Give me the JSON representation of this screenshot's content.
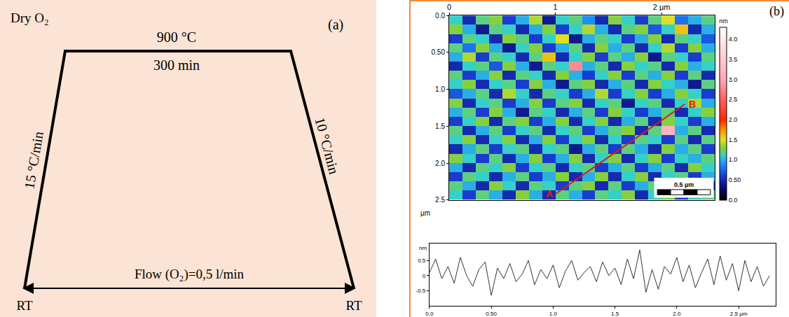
{
  "diagram": {
    "panel_label": "(a)",
    "atmosphere": "Dry O₂",
    "plateau_temperature": "900 °C",
    "plateau_time": "300 min",
    "heating_rate": "15 °C/min",
    "cooling_rate": "10 °C/min",
    "flow": "Flow (O₂)=0,5 l/min",
    "start": "RT",
    "end": "RT"
  },
  "chart_data": [
    {
      "type": "heatmap",
      "panel_label": "(b)",
      "x": [
        0.0625,
        0.1875,
        0.3125,
        0.4375,
        0.5625,
        0.6875,
        0.8125,
        0.9375,
        1.0625,
        1.1875,
        1.3125,
        1.4375,
        1.5625,
        1.6875,
        1.8125,
        1.9375,
        2.0625,
        2.1875,
        2.3125,
        2.4375
      ],
      "y": [
        0.0625,
        0.1875,
        0.3125,
        0.4375,
        0.5625,
        0.6875,
        0.8125,
        0.9375,
        1.0625,
        1.1875,
        1.3125,
        1.4375,
        1.5625,
        1.6875,
        1.8125,
        1.9375,
        2.0625,
        2.1875,
        2.3125,
        2.4375
      ],
      "z": [
        [
          1.1,
          0.5,
          1.2,
          1.3,
          0.6,
          1.0,
          1.4,
          0.4,
          1.1,
          1.2,
          0.9,
          0.5,
          1.3,
          1.1,
          0.6,
          1.2,
          1.5,
          0.8,
          1.0,
          1.2
        ],
        [
          1.3,
          1.0,
          0.4,
          1.2,
          1.1,
          0.5,
          1.0,
          1.3,
          0.6,
          1.1,
          1.4,
          1.0,
          0.5,
          1.2,
          1.3,
          0.7,
          1.1,
          1.6,
          0.5,
          1.0
        ],
        [
          0.6,
          1.2,
          1.1,
          0.5,
          1.3,
          1.2,
          0.6,
          1.1,
          1.5,
          0.4,
          1.0,
          1.2,
          1.1,
          0.6,
          1.0,
          1.3,
          0.5,
          1.2,
          1.1,
          0.7
        ],
        [
          1.2,
          0.8,
          1.3,
          1.0,
          0.4,
          1.1,
          1.3,
          0.6,
          1.0,
          1.2,
          0.5,
          1.3,
          1.0,
          1.2,
          0.5,
          1.1,
          1.4,
          0.6,
          1.3,
          1.0
        ],
        [
          1.0,
          1.4,
          0.6,
          1.2,
          1.1,
          0.5,
          1.2,
          1.6,
          0.5,
          1.1,
          1.3,
          0.6,
          1.2,
          1.0,
          1.3,
          0.4,
          1.2,
          1.1,
          0.6,
          1.2
        ],
        [
          0.5,
          1.1,
          1.2,
          0.7,
          1.3,
          1.0,
          0.4,
          1.2,
          1.1,
          2.8,
          1.0,
          1.2,
          0.5,
          1.3,
          1.1,
          1.2,
          0.5,
          1.3,
          1.0,
          1.1
        ],
        [
          1.2,
          0.6,
          1.0,
          1.3,
          0.5,
          1.2,
          1.1,
          0.5,
          1.3,
          1.0,
          0.6,
          1.1,
          1.3,
          0.6,
          1.2,
          1.0,
          1.3,
          0.6,
          1.2,
          0.5
        ],
        [
          1.1,
          1.3,
          0.5,
          1.1,
          1.2,
          0.6,
          1.3,
          1.0,
          0.4,
          1.2,
          1.3,
          0.5,
          1.0,
          1.2,
          0.5,
          1.3,
          1.1,
          1.0,
          0.4,
          1.2
        ],
        [
          0.7,
          1.0,
          1.2,
          0.5,
          1.4,
          1.1,
          0.5,
          1.2,
          1.1,
          0.6,
          1.0,
          1.4,
          0.6,
          1.1,
          1.3,
          0.6,
          1.0,
          1.3,
          1.1,
          0.6
        ],
        [
          1.3,
          0.5,
          1.1,
          1.2,
          0.6,
          1.0,
          1.3,
          0.6,
          1.2,
          1.3,
          0.5,
          1.1,
          1.2,
          0.4,
          1.1,
          1.2,
          0.5,
          1.1,
          1.4,
          1.0
        ],
        [
          1.0,
          1.2,
          0.6,
          1.3,
          1.0,
          0.4,
          1.2,
          1.1,
          0.5,
          1.0,
          1.2,
          0.6,
          1.3,
          1.1,
          0.6,
          1.0,
          1.2,
          0.5,
          1.1,
          1.3
        ],
        [
          0.6,
          1.1,
          1.3,
          0.5,
          1.2,
          1.3,
          0.6,
          1.0,
          1.3,
          0.5,
          1.1,
          1.3,
          0.5,
          1.0,
          1.2,
          0.5,
          1.3,
          1.1,
          0.6,
          1.0
        ],
        [
          1.2,
          0.5,
          1.0,
          1.2,
          0.6,
          1.1,
          1.2,
          0.5,
          1.1,
          1.2,
          0.6,
          1.0,
          1.2,
          1.3,
          0.5,
          1.2,
          3.2,
          1.0,
          1.2,
          0.5
        ],
        [
          1.1,
          1.3,
          0.5,
          1.1,
          1.3,
          0.5,
          1.0,
          1.3,
          0.6,
          1.1,
          1.3,
          0.5,
          1.1,
          0.6,
          1.2,
          1.1,
          0.6,
          1.2,
          0.5,
          1.2
        ],
        [
          0.5,
          1.0,
          1.2,
          0.6,
          1.1,
          1.2,
          0.5,
          1.1,
          1.2,
          0.4,
          1.0,
          1.2,
          0.6,
          1.2,
          1.0,
          0.5,
          1.3,
          1.0,
          1.2,
          0.6
        ],
        [
          1.3,
          1.1,
          0.6,
          1.2,
          0.5,
          1.0,
          1.3,
          0.6,
          1.0,
          1.3,
          0.5,
          1.1,
          1.3,
          0.5,
          1.1,
          1.3,
          0.6,
          1.1,
          1.0,
          1.2
        ],
        [
          1.0,
          0.5,
          1.2,
          1.1,
          1.3,
          0.6,
          1.1,
          1.2,
          0.5,
          1.1,
          1.2,
          0.6,
          1.0,
          1.2,
          0.6,
          1.0,
          1.2,
          0.5,
          1.3,
          1.1
        ],
        [
          0.6,
          1.2,
          1.1,
          0.5,
          1.0,
          1.2,
          0.6,
          1.0,
          1.3,
          0.5,
          1.0,
          1.3,
          0.5,
          1.1,
          1.3,
          0.5,
          1.1,
          1.2,
          0.6,
          1.0
        ],
        [
          1.2,
          1.0,
          0.5,
          1.3,
          1.1,
          0.5,
          1.2,
          1.1,
          0.6,
          1.2,
          1.3,
          0.5,
          1.2,
          0.6,
          1.0,
          1.2,
          0.6,
          1.0,
          1.3,
          0.5
        ],
        [
          1.1,
          0.6,
          1.2,
          1.0,
          0.5,
          1.3,
          1.0,
          0.5,
          1.2,
          1.0,
          0.6,
          1.2,
          1.1,
          1.3,
          0.5,
          1.1,
          1.3,
          0.6,
          1.1,
          1.2
        ]
      ],
      "xlim": [
        0,
        2.5
      ],
      "ylim": [
        2.5,
        0
      ],
      "xticks": [
        0,
        1,
        {
          "value": 2,
          "label": "2 µm"
        }
      ],
      "yticks": [
        {
          "value": 0,
          "label": "0.0"
        },
        {
          "value": 0.5,
          "label": "0.50"
        },
        {
          "value": 1,
          "label": "1.0"
        },
        1.5,
        {
          "value": 2,
          "label": "2.0"
        },
        2.5
      ],
      "y_label": "µm",
      "colorbar": {
        "title": "nm",
        "range": [
          0,
          4.3
        ],
        "ticks": [
          {
            "value": 0,
            "label": "0.0"
          },
          {
            "value": 0.5,
            "label": "0.50"
          },
          {
            "value": 1,
            "label": "1.0"
          },
          1.5,
          {
            "value": 2,
            "label": "2.0"
          },
          2.5,
          {
            "value": 3,
            "label": "3.0"
          },
          3.5,
          {
            "value": 4,
            "label": "4.0"
          }
        ]
      },
      "profile_line": {
        "color": "#e01818",
        "start": {
          "label": "A",
          "x": 1.0,
          "y": 2.42
        },
        "end": {
          "label": "B",
          "x": 2.22,
          "y": 1.2
        }
      },
      "scale_bar": {
        "label": "0.5 µm",
        "length": 0.5
      }
    },
    {
      "type": "line",
      "x": [
        0,
        0.05,
        0.1,
        0.15,
        0.2,
        0.25,
        0.3,
        0.35,
        0.4,
        0.45,
        0.5,
        0.55,
        0.6,
        0.65,
        0.7,
        0.75,
        0.8,
        0.85,
        0.9,
        0.95,
        1.0,
        1.05,
        1.1,
        1.15,
        1.2,
        1.25,
        1.3,
        1.35,
        1.4,
        1.45,
        1.5,
        1.55,
        1.6,
        1.65,
        1.7,
        1.75,
        1.8,
        1.85,
        1.9,
        1.95,
        2.0,
        2.05,
        2.1,
        2.15,
        2.2,
        2.25,
        2.3,
        2.35,
        2.4,
        2.45,
        2.5,
        2.55,
        2.6,
        2.65,
        2.7,
        2.75
      ],
      "values": [
        0.1,
        0.55,
        -0.1,
        0.3,
        -0.25,
        0.6,
        0.0,
        -0.35,
        0.2,
        0.45,
        -0.65,
        0.25,
        -0.1,
        0.4,
        -0.2,
        0.05,
        0.5,
        -0.3,
        0.2,
        -0.1,
        0.35,
        -0.4,
        0.15,
        0.5,
        -0.15,
        0.1,
        0.3,
        -0.2,
        0.45,
        0.0,
        0.25,
        -0.3,
        0.55,
        -0.1,
        0.85,
        -0.55,
        0.2,
        -0.45,
        0.3,
        0.05,
        0.6,
        -0.2,
        0.35,
        -0.4,
        0.1,
        0.55,
        -0.3,
        0.65,
        -0.15,
        0.4,
        -0.5,
        0.5,
        -0.2,
        0.3,
        -0.35,
        0.0
      ],
      "color": "#333333",
      "xlim": [
        0,
        2.8
      ],
      "ylim": [
        -1,
        1.05
      ],
      "xticks": [
        {
          "value": 0,
          "label": "0.0"
        },
        {
          "value": 0.5,
          "label": "0.50"
        },
        {
          "value": 1,
          "label": "1.0"
        },
        1.5,
        {
          "value": 2,
          "label": "2.0"
        },
        {
          "value": 2.5,
          "label": "2.5 µm"
        }
      ],
      "yticks": [
        -0.5,
        0,
        0.5
      ],
      "y_label": "nm"
    }
  ]
}
